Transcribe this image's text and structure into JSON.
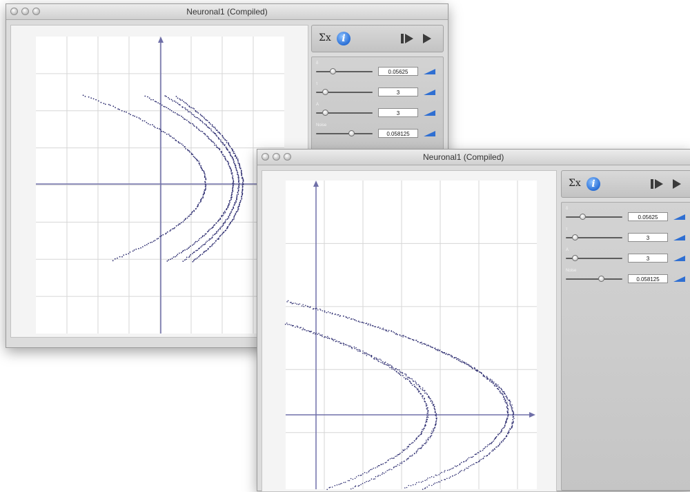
{
  "windows": [
    {
      "title": "Neuronal1 (Compiled)",
      "toolbar": {
        "sum_label": "Σx",
        "info_label": "i"
      },
      "params": [
        {
          "label": "δ",
          "value": "0.05625",
          "level": 0.25
        },
        {
          "label": "τ",
          "value": "3",
          "level": 0.12
        },
        {
          "label": "A",
          "value": "3",
          "level": 0.12
        },
        {
          "label": "Noise",
          "value": "0.058125",
          "level": 0.6
        }
      ]
    },
    {
      "title": "Neuronal1 (Compiled)",
      "toolbar": {
        "sum_label": "Σx",
        "info_label": "i"
      },
      "params": [
        {
          "label": "δ",
          "value": "0.05625",
          "level": 0.25
        },
        {
          "label": "τ",
          "value": "3",
          "level": 0.12
        },
        {
          "label": "A",
          "value": "3",
          "level": 0.12
        },
        {
          "label": "Noise",
          "value": "0.058125",
          "level": 0.6
        }
      ]
    }
  ],
  "colors": {
    "trajectory": "#2a2a6e",
    "axis": "#6f6fa8",
    "grid": "#d6d6d6",
    "value_arrow": "#2f6fd2"
  },
  "icons": [
    "sum-icon",
    "info-icon",
    "step-icon",
    "play-icon",
    "value-arrow-icon",
    "window-close-icon"
  ]
}
